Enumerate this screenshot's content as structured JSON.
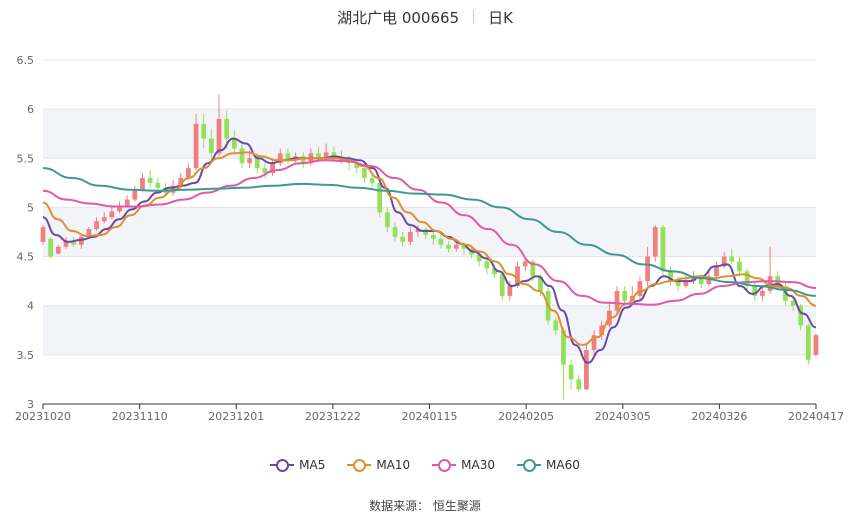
{
  "header": {
    "title": "湖北广电 000665",
    "period": "日K"
  },
  "source": "数据来源： 恒生聚源",
  "colors": {
    "up": "#f07f7f",
    "down": "#93e05a",
    "ma5": "#6b49a6",
    "ma10": "#e0902e",
    "ma30": "#e05aa8",
    "ma60": "#3d9991",
    "band": "#f3f4fa",
    "grid": "#e4e4e4"
  },
  "chart_data": {
    "type": "candlestick",
    "title": "湖北广电 000665",
    "subtitle": "日K",
    "ylim": [
      3,
      6.5
    ],
    "yticks": [
      "3",
      "3.5",
      "4",
      "4.5",
      "5",
      "5.5",
      "6",
      "6.5"
    ],
    "xticks": [
      "20231020",
      "20231110",
      "20231201",
      "20231222",
      "20240115",
      "20240205",
      "20240305",
      "20240326",
      "20240417"
    ],
    "legend": [
      "MA5",
      "MA10",
      "MA30",
      "MA60"
    ],
    "legend_position": "bottom",
    "candles": [
      [
        4.65,
        4.8,
        4.82,
        4.62
      ],
      [
        4.68,
        4.5,
        4.7,
        4.48
      ],
      [
        4.53,
        4.6,
        4.62,
        4.52
      ],
      [
        4.6,
        4.66,
        4.7,
        4.58
      ],
      [
        4.66,
        4.62,
        4.7,
        4.6
      ],
      [
        4.62,
        4.7,
        4.72,
        4.58
      ],
      [
        4.7,
        4.78,
        4.8,
        4.68
      ],
      [
        4.78,
        4.86,
        4.9,
        4.76
      ],
      [
        4.86,
        4.9,
        4.95,
        4.84
      ],
      [
        4.9,
        4.96,
        5.0,
        4.88
      ],
      [
        4.96,
        5.02,
        5.06,
        4.94
      ],
      [
        5.02,
        5.08,
        5.12,
        5.0
      ],
      [
        5.08,
        5.18,
        5.22,
        5.06
      ],
      [
        5.18,
        5.3,
        5.35,
        5.16
      ],
      [
        5.3,
        5.25,
        5.38,
        5.2
      ],
      [
        5.25,
        5.2,
        5.3,
        5.15
      ],
      [
        5.2,
        5.15,
        5.25,
        5.12
      ],
      [
        5.15,
        5.22,
        5.28,
        5.12
      ],
      [
        5.22,
        5.3,
        5.35,
        5.18
      ],
      [
        5.3,
        5.4,
        5.45,
        5.28
      ],
      [
        5.4,
        5.85,
        5.95,
        5.38
      ],
      [
        5.85,
        5.7,
        5.95,
        5.6
      ],
      [
        5.7,
        5.55,
        5.8,
        5.5
      ],
      [
        5.55,
        5.9,
        6.15,
        5.52
      ],
      [
        5.9,
        5.7,
        5.98,
        5.6
      ],
      [
        5.7,
        5.6,
        5.78,
        5.55
      ],
      [
        5.6,
        5.45,
        5.65,
        5.4
      ],
      [
        5.45,
        5.5,
        5.58,
        5.4
      ],
      [
        5.5,
        5.4,
        5.55,
        5.35
      ],
      [
        5.4,
        5.35,
        5.48,
        5.3
      ],
      [
        5.35,
        5.45,
        5.5,
        5.32
      ],
      [
        5.45,
        5.55,
        5.6,
        5.42
      ],
      [
        5.55,
        5.48,
        5.6,
        5.44
      ],
      [
        5.48,
        5.52,
        5.56,
        5.45
      ],
      [
        5.52,
        5.45,
        5.56,
        5.4
      ],
      [
        5.45,
        5.55,
        5.6,
        5.42
      ],
      [
        5.55,
        5.5,
        5.62,
        5.46
      ],
      [
        5.5,
        5.56,
        5.65,
        5.48
      ],
      [
        5.56,
        5.52,
        5.62,
        5.48
      ],
      [
        5.52,
        5.48,
        5.58,
        5.44
      ],
      [
        5.48,
        5.45,
        5.52,
        5.38
      ],
      [
        5.45,
        5.4,
        5.5,
        5.35
      ],
      [
        5.4,
        5.3,
        5.45,
        5.25
      ],
      [
        5.3,
        5.25,
        5.35,
        5.2
      ],
      [
        5.25,
        4.95,
        5.28,
        4.9
      ],
      [
        4.95,
        4.8,
        5.0,
        4.75
      ],
      [
        4.8,
        4.7,
        4.85,
        4.65
      ],
      [
        4.7,
        4.65,
        4.75,
        4.6
      ],
      [
        4.65,
        4.75,
        4.8,
        4.62
      ],
      [
        4.75,
        4.78,
        4.82,
        4.7
      ],
      [
        4.78,
        4.72,
        4.8,
        4.68
      ],
      [
        4.72,
        4.68,
        4.75,
        4.62
      ],
      [
        4.68,
        4.62,
        4.72,
        4.58
      ],
      [
        4.62,
        4.58,
        4.66,
        4.54
      ],
      [
        4.58,
        4.62,
        4.66,
        4.55
      ],
      [
        4.62,
        4.58,
        4.65,
        4.52
      ],
      [
        4.58,
        4.52,
        4.62,
        4.48
      ],
      [
        4.52,
        4.45,
        4.56,
        4.4
      ],
      [
        4.45,
        4.38,
        4.5,
        4.32
      ],
      [
        4.38,
        4.32,
        4.42,
        4.28
      ],
      [
        4.32,
        4.1,
        4.35,
        4.05
      ],
      [
        4.1,
        4.2,
        4.25,
        4.05
      ],
      [
        4.2,
        4.4,
        4.45,
        4.18
      ],
      [
        4.4,
        4.45,
        4.5,
        4.35
      ],
      [
        4.45,
        4.3,
        4.48,
        4.25
      ],
      [
        4.3,
        4.15,
        4.32,
        4.1
      ],
      [
        4.15,
        3.85,
        4.18,
        3.8
      ],
      [
        3.85,
        3.75,
        3.88,
        3.7
      ],
      [
        3.75,
        3.4,
        3.78,
        3.05
      ],
      [
        3.4,
        3.25,
        3.45,
        3.15
      ],
      [
        3.25,
        3.15,
        3.3,
        3.12
      ],
      [
        3.15,
        3.55,
        3.6,
        3.14
      ],
      [
        3.55,
        3.7,
        3.75,
        3.5
      ],
      [
        3.7,
        3.8,
        3.85,
        3.65
      ],
      [
        3.8,
        3.95,
        4.05,
        3.78
      ],
      [
        3.95,
        4.15,
        4.2,
        3.9
      ],
      [
        4.15,
        4.05,
        4.2,
        4.0
      ],
      [
        4.05,
        4.1,
        4.2,
        4.02
      ],
      [
        4.1,
        4.25,
        4.3,
        4.05
      ],
      [
        4.25,
        4.5,
        4.6,
        4.2
      ],
      [
        4.5,
        4.8,
        4.82,
        4.45
      ],
      [
        4.8,
        4.35,
        4.82,
        4.3
      ],
      [
        4.35,
        4.25,
        4.4,
        4.2
      ],
      [
        4.25,
        4.2,
        4.3,
        4.15
      ],
      [
        4.2,
        4.25,
        4.32,
        4.18
      ],
      [
        4.25,
        4.28,
        4.35,
        4.22
      ],
      [
        4.28,
        4.22,
        4.32,
        4.18
      ],
      [
        4.22,
        4.3,
        4.35,
        4.2
      ],
      [
        4.3,
        4.4,
        4.45,
        4.28
      ],
      [
        4.4,
        4.5,
        4.55,
        4.38
      ],
      [
        4.5,
        4.45,
        4.58,
        4.42
      ],
      [
        4.45,
        4.35,
        4.5,
        4.3
      ],
      [
        4.35,
        4.2,
        4.38,
        4.15
      ],
      [
        4.2,
        4.1,
        4.25,
        4.05
      ],
      [
        4.1,
        4.15,
        4.2,
        4.05
      ],
      [
        4.15,
        4.3,
        4.6,
        4.12
      ],
      [
        4.3,
        4.2,
        4.35,
        4.15
      ],
      [
        4.2,
        4.05,
        4.25,
        4.0
      ],
      [
        4.05,
        4.0,
        4.1,
        3.95
      ],
      [
        4.0,
        3.8,
        4.02,
        3.75
      ],
      [
        3.8,
        3.45,
        3.82,
        3.4
      ],
      [
        3.5,
        3.7,
        3.72,
        3.48
      ]
    ],
    "series": [
      {
        "name": "MA5",
        "values": [
          4.9,
          4.72,
          4.65,
          4.67,
          4.7,
          4.78,
          4.88,
          4.98,
          5.06,
          5.15,
          5.2,
          5.22,
          5.25,
          5.45,
          5.58,
          5.7,
          5.65,
          5.5,
          5.45,
          5.48,
          5.5,
          5.5,
          5.5,
          5.52,
          5.5,
          5.48,
          5.4,
          5.2,
          4.95,
          4.82,
          4.76,
          4.76,
          4.7,
          4.63,
          4.55,
          4.48,
          4.35,
          4.2,
          4.25,
          4.3,
          4.2,
          3.95,
          3.6,
          3.42,
          3.55,
          3.78,
          3.98,
          4.05,
          4.2,
          4.3,
          4.25,
          4.25,
          4.3,
          4.4,
          4.42,
          4.2,
          4.12,
          4.2,
          4.22,
          4.1,
          3.92,
          3.78
        ]
      },
      {
        "name": "MA10",
        "values": [
          5.05,
          4.88,
          4.76,
          4.71,
          4.72,
          4.8,
          4.92,
          5.02,
          5.1,
          5.18,
          5.3,
          5.4,
          5.5,
          5.55,
          5.56,
          5.52,
          5.48,
          5.48,
          5.5,
          5.5,
          5.5,
          5.48,
          5.42,
          5.3,
          5.1,
          4.95,
          4.85,
          4.76,
          4.68,
          4.62,
          4.55,
          4.45,
          4.32,
          4.22,
          4.15,
          3.95,
          3.68,
          3.6,
          3.68,
          3.88,
          4.02,
          4.15,
          4.22,
          4.25,
          4.28,
          4.3,
          4.28,
          4.3,
          4.32,
          4.28,
          4.2,
          4.18,
          4.1,
          4.0
        ]
      },
      {
        "name": "MA30",
        "values": [
          5.17,
          5.08,
          5.04,
          5.01,
          5.01,
          5.03,
          5.08,
          5.15,
          5.22,
          5.3,
          5.38,
          5.45,
          5.48,
          5.47,
          5.42,
          5.3,
          5.18,
          5.05,
          4.92,
          4.78,
          4.62,
          4.42,
          4.25,
          4.1,
          4.03,
          4.02,
          4.01,
          4.05,
          4.12,
          4.2,
          4.24,
          4.25,
          4.24,
          4.18
        ]
      },
      {
        "name": "MA60",
        "values": [
          5.4,
          5.3,
          5.22,
          5.18,
          5.17,
          5.18,
          5.19,
          5.2,
          5.22,
          5.24,
          5.23,
          5.2,
          5.17,
          5.14,
          5.13,
          5.08,
          5.0,
          4.88,
          4.75,
          4.62,
          4.52,
          4.42,
          4.35,
          4.28,
          4.24,
          4.2,
          4.16,
          4.1
        ]
      }
    ]
  }
}
